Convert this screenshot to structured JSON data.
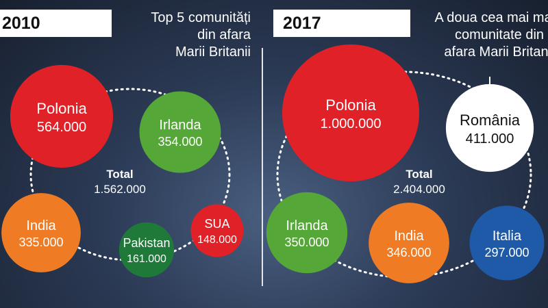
{
  "chart_data": [
    {
      "type": "bubble",
      "year_label": "2010",
      "title_lines": [
        "Top 5 comunități",
        "din afara",
        "Marii Britanii"
      ],
      "total_label": "Total",
      "total_value": "1.562.000",
      "series": [
        {
          "name": "Polonia",
          "value": 564000,
          "value_label": "564.000",
          "color": "#e02228"
        },
        {
          "name": "Irlanda",
          "value": 354000,
          "value_label": "354.000",
          "color": "#55a737"
        },
        {
          "name": "India",
          "value": 335000,
          "value_label": "335.000",
          "color": "#ef7c25"
        },
        {
          "name": "Pakistan",
          "value": 161000,
          "value_label": "161.000",
          "color": "#1f7a3a"
        },
        {
          "name": "SUA",
          "value": 148000,
          "value_label": "148.000",
          "color": "#e02228"
        }
      ]
    },
    {
      "type": "bubble",
      "year_label": "2017",
      "title_lines": [
        "A doua cea mai mare",
        "comunitate din",
        "afara Marii Britanii"
      ],
      "total_label": "Total",
      "total_value": "2.404.000",
      "series": [
        {
          "name": "Polonia",
          "value": 1000000,
          "value_label": "1.000.000",
          "color": "#e02228"
        },
        {
          "name": "România",
          "value": 411000,
          "value_label": "411.000",
          "color": "#ffffff"
        },
        {
          "name": "Irlanda",
          "value": 350000,
          "value_label": "350.000",
          "color": "#55a737"
        },
        {
          "name": "India",
          "value": 346000,
          "value_label": "346.000",
          "color": "#ef7c25"
        },
        {
          "name": "Italia",
          "value": 297000,
          "value_label": "297.000",
          "color": "#1e5aa8"
        }
      ]
    }
  ]
}
